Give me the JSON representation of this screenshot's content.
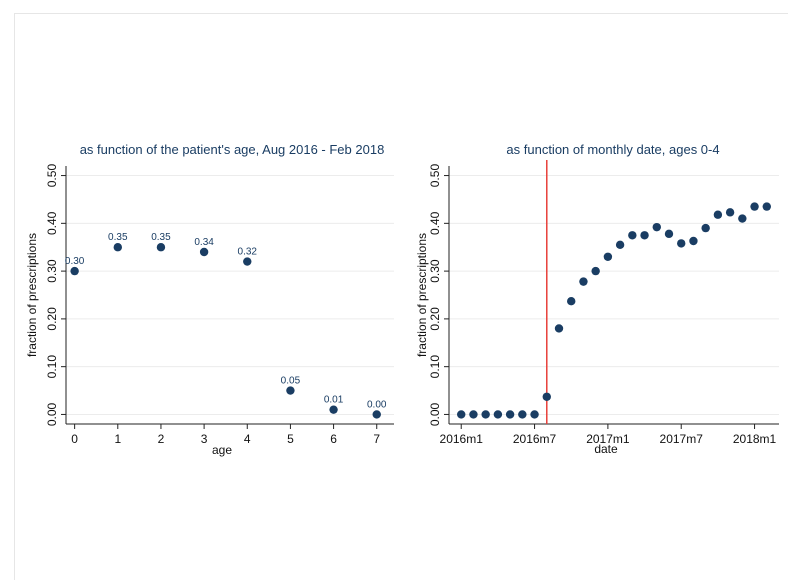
{
  "chart_data": [
    {
      "type": "scatter",
      "title": "as function of the patient's age, Aug 2016 - Feb 2018",
      "xlabel": "age",
      "ylabel": "fraction of prescriptions",
      "xlim": [
        -0.2,
        7.4
      ],
      "ylim": [
        -0.02,
        0.52
      ],
      "xticks": [
        0,
        1,
        2,
        3,
        4,
        5,
        6,
        7
      ],
      "xtick_labels": [
        "0",
        "1",
        "2",
        "3",
        "4",
        "5",
        "6",
        "7"
      ],
      "yticks": [
        0,
        0.1,
        0.2,
        0.3,
        0.4,
        0.5
      ],
      "ytick_labels": [
        "0.00",
        "0.10",
        "0.20",
        "0.30",
        "0.40",
        "0.50"
      ],
      "grid": true,
      "marker_color": "#1a3d63",
      "x": [
        0,
        1,
        2,
        3,
        4,
        5,
        6,
        7
      ],
      "y": [
        0.3,
        0.35,
        0.35,
        0.34,
        0.32,
        0.05,
        0.01,
        0.0
      ],
      "data_labels": [
        "0.30",
        "0.35",
        "0.35",
        "0.34",
        "0.32",
        "0.05",
        "0.01",
        "0.00"
      ]
    },
    {
      "type": "scatter",
      "title": "as function of monthly date, ages 0-4",
      "xlabel": "date",
      "ylabel": "fraction of prescriptions",
      "xlim": [
        "2015-12",
        "2018-03"
      ],
      "ylim": [
        -0.02,
        0.52
      ],
      "xticks": [
        "2016-01",
        "2016-07",
        "2017-01",
        "2017-07",
        "2018-01"
      ],
      "xtick_labels": [
        "2016m1",
        "2016m7",
        "2017m1",
        "2017m7",
        "2018m1"
      ],
      "yticks": [
        0,
        0.1,
        0.2,
        0.3,
        0.4,
        0.5
      ],
      "ytick_labels": [
        "0.00",
        "0.10",
        "0.20",
        "0.30",
        "0.40",
        "0.50"
      ],
      "grid": true,
      "marker_color": "#1a3d63",
      "reference_line": {
        "x": "2016-08",
        "color": "#e8403a"
      },
      "x": [
        "2016-01",
        "2016-02",
        "2016-03",
        "2016-04",
        "2016-05",
        "2016-06",
        "2016-07",
        "2016-08",
        "2016-09",
        "2016-10",
        "2016-11",
        "2016-12",
        "2017-01",
        "2017-02",
        "2017-03",
        "2017-04",
        "2017-05",
        "2017-06",
        "2017-07",
        "2017-08",
        "2017-09",
        "2017-10",
        "2017-11",
        "2017-12",
        "2018-01",
        "2018-02"
      ],
      "y": [
        0.0,
        0.0,
        0.0,
        0.0,
        0.0,
        0.0,
        0.0,
        0.037,
        0.18,
        0.237,
        0.278,
        0.3,
        0.33,
        0.355,
        0.375,
        0.375,
        0.392,
        0.378,
        0.358,
        0.363,
        0.39,
        0.418,
        0.423,
        0.41,
        0.435,
        0.435
      ]
    }
  ]
}
